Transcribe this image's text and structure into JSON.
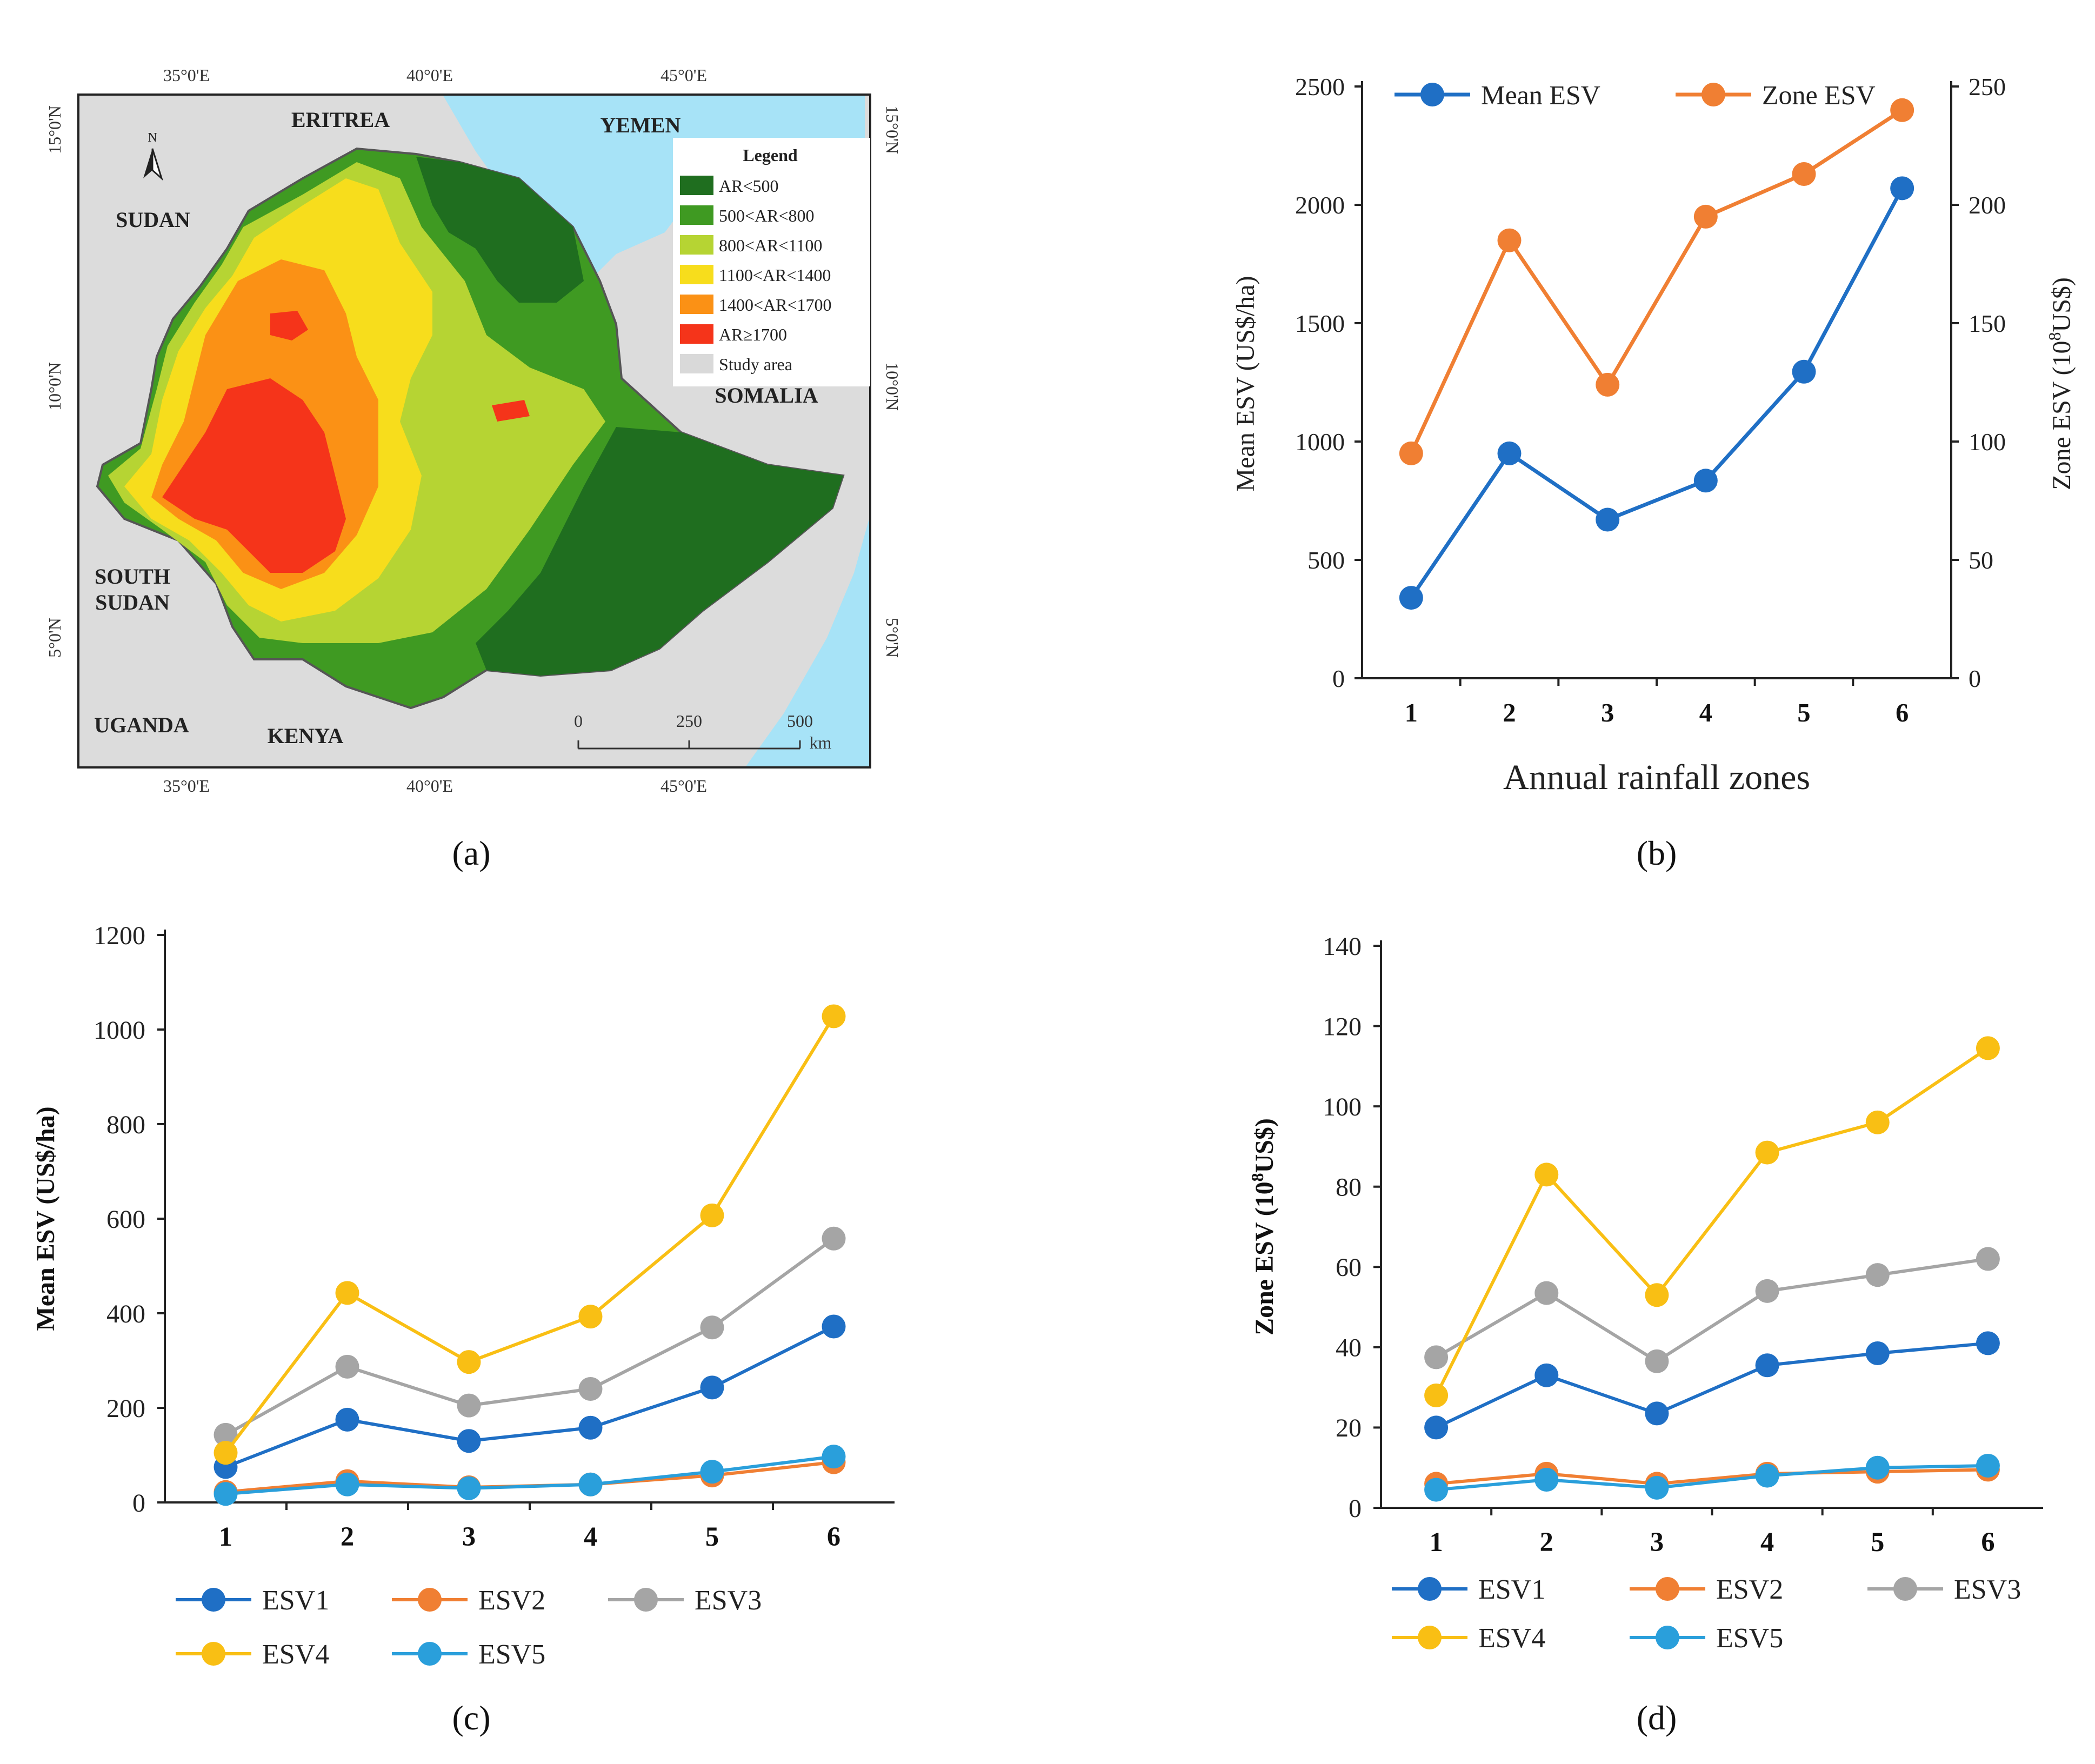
{
  "figure": {
    "panel_labels": [
      "(a)",
      "(b)",
      "(c)",
      "(d)"
    ]
  },
  "map": {
    "lon_labels": [
      "35°0'E",
      "40°0'E",
      "45°0'E"
    ],
    "lat_labels": [
      "15°0'N",
      "10°0'N",
      "5°0'N"
    ],
    "countries": {
      "eritrea": "ERITREA",
      "yemen": "YEMEN",
      "sudan": "SUDAN",
      "somalia": "SOMALIA",
      "south_sudan_1": "SOUTH",
      "south_sudan_2": "SUDAN",
      "uganda": "UGANDA",
      "kenya": "KENYA"
    },
    "north": "N",
    "legend": {
      "title": "Legend",
      "items": [
        {
          "label": "AR<500",
          "color": "#1f6e1f"
        },
        {
          "label": "500<AR<800",
          "color": "#3f9a22"
        },
        {
          "label": "800<AR<1100",
          "color": "#b6d433"
        },
        {
          "label": "1100<AR<1400",
          "color": "#f7dd1c"
        },
        {
          "label": "1400<AR<1700",
          "color": "#fb9115"
        },
        {
          "label": "AR≥1700",
          "color": "#f5341a"
        },
        {
          "label": "Study area",
          "color": "#d9d9d9"
        }
      ]
    },
    "scalebar": {
      "ticks": [
        "0",
        "250",
        "500"
      ],
      "unit": "km"
    },
    "colors": {
      "land": "#dcdcdc",
      "sea": "#a7e3f7"
    }
  },
  "chart_data": [
    {
      "panel": "b",
      "type": "line",
      "categories": [
        "1",
        "2",
        "3",
        "4",
        "5",
        "6"
      ],
      "xlabel": "Annual rainfall zones",
      "ylabel": "Mean ESV (US$/ha)",
      "y2label": "Zone ESV  (10",
      "y2label_sup": "8",
      "y2label_end": "US$)",
      "ylim": [
        0,
        2500
      ],
      "y2lim": [
        0,
        250
      ],
      "yticks": [
        "0",
        "500",
        "1000",
        "1500",
        "2000",
        "2500"
      ],
      "y2ticks": [
        "0",
        "50",
        "100",
        "150",
        "200",
        "250"
      ],
      "series": [
        {
          "name": "Mean ESV",
          "axis": "left",
          "color": "#1f6fc5",
          "values": [
            340,
            950,
            670,
            835,
            1295,
            2070
          ]
        },
        {
          "name": "Zone ESV",
          "axis": "right",
          "color": "#f07f33",
          "values": [
            95,
            185,
            124,
            195,
            213,
            240
          ]
        }
      ]
    },
    {
      "panel": "c",
      "type": "line",
      "categories": [
        "1",
        "2",
        "3",
        "4",
        "5",
        "6"
      ],
      "ylabel": "Mean ESV (US$/ha)",
      "ylim": [
        0,
        1200
      ],
      "yticks": [
        "0",
        "200",
        "400",
        "600",
        "800",
        "1000",
        "1200"
      ],
      "series": [
        {
          "name": "ESV1",
          "color": "#1f6fc5",
          "values": [
            75,
            175,
            130,
            158,
            243,
            372
          ]
        },
        {
          "name": "ESV2",
          "color": "#f07f33",
          "values": [
            22,
            45,
            32,
            38,
            57,
            85
          ]
        },
        {
          "name": "ESV3",
          "color": "#a5a5a5",
          "values": [
            143,
            287,
            205,
            240,
            370,
            558
          ]
        },
        {
          "name": "ESV4",
          "color": "#f9bf14",
          "values": [
            105,
            443,
            297,
            393,
            607,
            1028
          ]
        },
        {
          "name": "ESV5",
          "color": "#2a9fdb",
          "values": [
            18,
            38,
            30,
            38,
            65,
            97
          ]
        }
      ]
    },
    {
      "panel": "d",
      "type": "line",
      "categories": [
        "1",
        "2",
        "3",
        "4",
        "5",
        "6"
      ],
      "ylabel": "Zone ESV  (10",
      "ylabel_sup": "8",
      "ylabel_end": "US$)",
      "ylim": [
        0,
        140
      ],
      "yticks": [
        "0",
        "20",
        "40",
        "60",
        "80",
        "100",
        "120",
        "140"
      ],
      "series": [
        {
          "name": "ESV1",
          "color": "#1f6fc5",
          "values": [
            20,
            33,
            23.5,
            35.5,
            38.5,
            41
          ]
        },
        {
          "name": "ESV2",
          "color": "#f07f33",
          "values": [
            6,
            8.5,
            6,
            8.5,
            9,
            9.5
          ]
        },
        {
          "name": "ESV3",
          "color": "#a5a5a5",
          "values": [
            37.5,
            53.5,
            36.5,
            54,
            58,
            62
          ]
        },
        {
          "name": "ESV4",
          "color": "#f9bf14",
          "values": [
            28,
            83,
            53,
            88.5,
            96,
            114.5
          ]
        },
        {
          "name": "ESV5",
          "color": "#2a9fdb",
          "values": [
            4.5,
            7,
            5,
            8,
            10,
            10.5
          ]
        }
      ]
    }
  ]
}
